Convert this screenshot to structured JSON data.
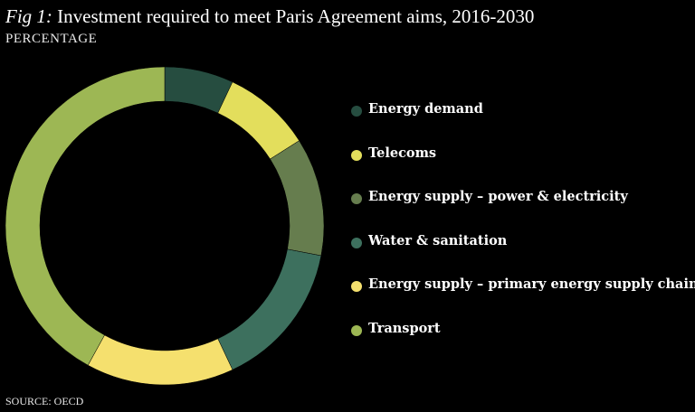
{
  "title": {
    "prefix": "Fig 1:",
    "text": " Investment required to meet Paris Agreement aims, 2016-2030"
  },
  "subtitle": "PERCENTAGE",
  "source": "SOURCE: OECD",
  "chart_data": {
    "type": "pie",
    "variant": "donut",
    "title": "Fig 1: Investment required to meet Paris Agreement aims, 2016-2030",
    "unit": "PERCENTAGE",
    "legend_position": "right",
    "categories": [
      "Energy demand",
      "Telecoms",
      "Energy supply – power & electricity",
      "Water & sanitation",
      "Energy supply – primary energy supply chain",
      "Transport"
    ],
    "values": [
      7,
      9,
      12,
      15,
      15,
      42
    ],
    "colors": [
      "#264d40",
      "#e3de5c",
      "#667d4e",
      "#3d705e",
      "#f5e06e",
      "#9db754"
    ]
  }
}
